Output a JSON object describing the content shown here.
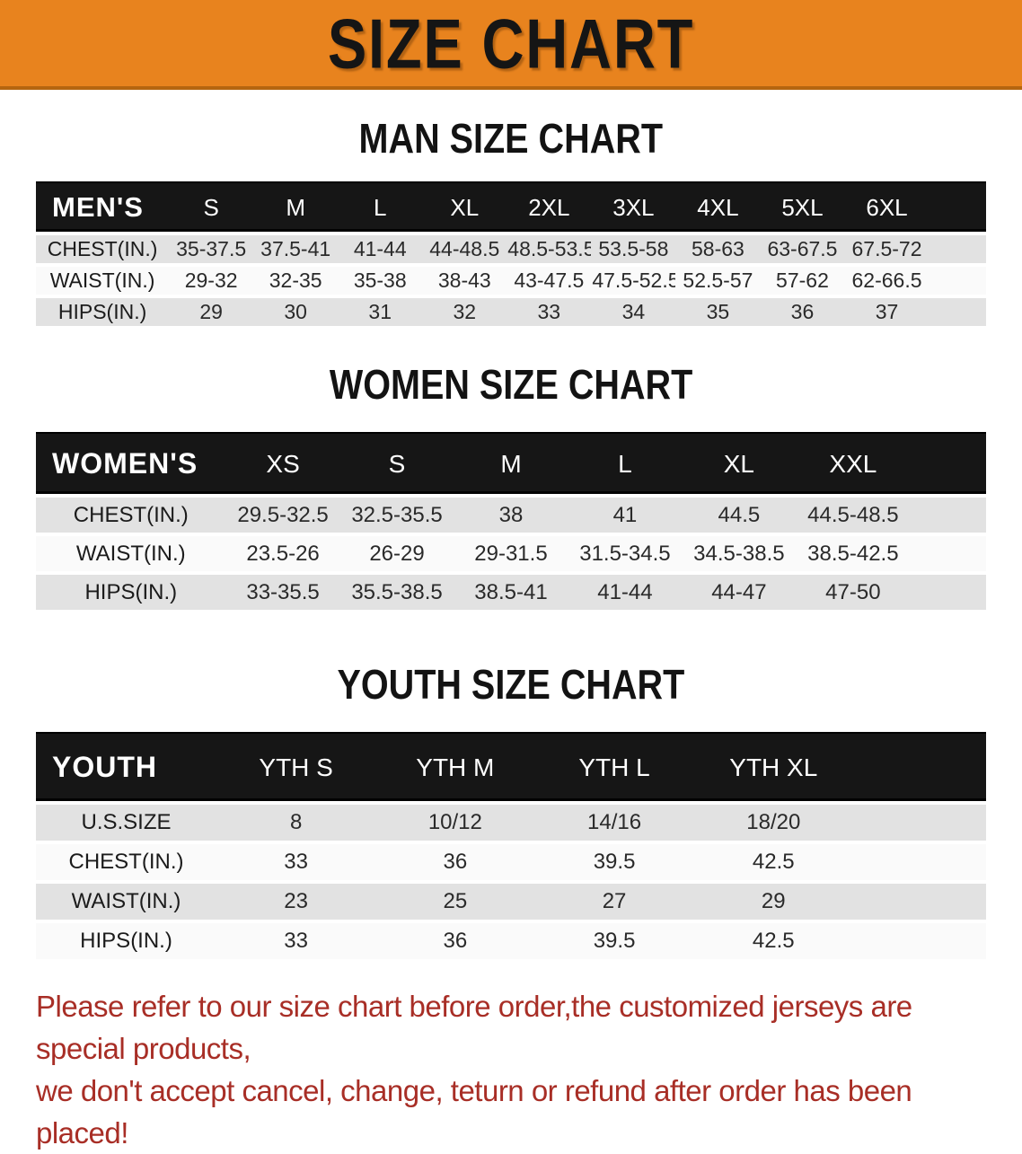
{
  "banner": {
    "title": "SIZE CHART",
    "bg_color": "#E8831E",
    "border_color": "#B5650F",
    "text_color": "#151515"
  },
  "sections": [
    {
      "heading": "MAN SIZE CHART",
      "table": {
        "header": [
          "MEN'S",
          "S",
          "M",
          "L",
          "XL",
          "2XL",
          "3XL",
          "4XL",
          "5XL",
          "6XL"
        ],
        "rows": [
          {
            "label": "CHEST(IN.)",
            "values": [
              "35-37.5",
              "37.5-41",
              "41-44",
              "44-48.5",
              "48.5-53.5",
              "53.5-58",
              "58-63",
              "63-67.5",
              "67.5-72"
            ]
          },
          {
            "label": "WAIST(IN.)",
            "values": [
              "29-32",
              "32-35",
              "35-38",
              "38-43",
              "43-47.5",
              "47.5-52.5",
              "52.5-57",
              "57-62",
              "62-66.5"
            ]
          },
          {
            "label": "HIPS(IN.)",
            "values": [
              "29",
              "30",
              "31",
              "32",
              "33",
              "34",
              "35",
              "36",
              "37"
            ]
          }
        ]
      }
    },
    {
      "heading": "WOMEN SIZE CHART",
      "table": {
        "header": [
          "WOMEN'S",
          "XS",
          "S",
          "M",
          "L",
          "XL",
          "XXL"
        ],
        "rows": [
          {
            "label": "CHEST(IN.)",
            "values": [
              "29.5-32.5",
              "32.5-35.5",
              "38",
              "41",
              "44.5",
              "44.5-48.5"
            ]
          },
          {
            "label": "WAIST(IN.)",
            "values": [
              "23.5-26",
              "26-29",
              "29-31.5",
              "31.5-34.5",
              "34.5-38.5",
              "38.5-42.5"
            ]
          },
          {
            "label": "HIPS(IN.)",
            "values": [
              "33-35.5",
              "35.5-38.5",
              "38.5-41",
              "41-44",
              "44-47",
              "47-50"
            ]
          }
        ]
      }
    },
    {
      "heading": "YOUTH SIZE CHART",
      "table": {
        "header": [
          "YOUTH",
          "YTH S",
          "YTH M",
          "YTH L",
          "YTH XL"
        ],
        "rows": [
          {
            "label": "U.S.SIZE",
            "values": [
              "8",
              "10/12",
              "14/16",
              "18/20"
            ]
          },
          {
            "label": "CHEST(IN.)",
            "values": [
              "33",
              "36",
              "39.5",
              "42.5"
            ]
          },
          {
            "label": "WAIST(IN.)",
            "values": [
              "23",
              "25",
              "27",
              "29"
            ]
          },
          {
            "label": "HIPS(IN.)",
            "values": [
              "33",
              "36",
              "39.5",
              "42.5"
            ]
          }
        ]
      }
    }
  ],
  "footer": {
    "line1": "Please refer to our size chart before order,the customized jerseys are special products,",
    "line2": "we don't accept cancel, change, teturn or refund after order has been placed!",
    "text_color": "#A82E26"
  },
  "row_colors": {
    "gray": "#E2E2E2",
    "white": "#FAFAFA",
    "band": "#161616"
  }
}
